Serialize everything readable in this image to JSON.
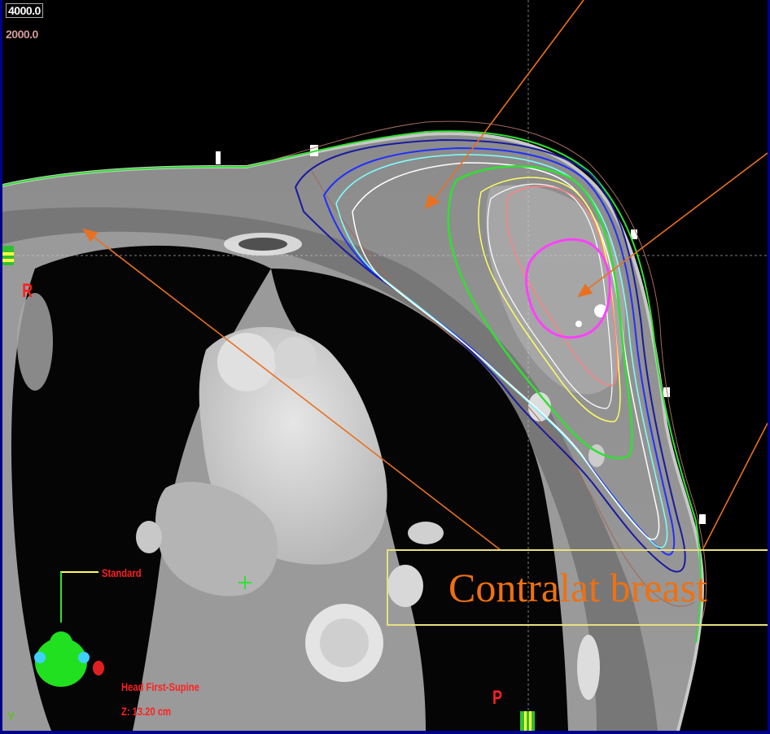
{
  "dose_levels": {
    "top": "4000.0",
    "second": "2000.0"
  },
  "orientation": {
    "right": "R",
    "posterior": "P"
  },
  "orientation_widget": {
    "view": "Standard",
    "axis": "Y"
  },
  "patient_info": {
    "position": "Head First-Supine",
    "z": "Z: 13.20 cm"
  },
  "annotation": {
    "label": "Contralat breast"
  },
  "colors": {
    "frame": "#00008b",
    "arrow": "#e87020",
    "callout_text": "#f07010",
    "callout_border": "#e8e080",
    "overlay_text": "#ff2020",
    "ptv_contour": "#ff40ff",
    "isodose_green": "#30e030",
    "isodose_blue": "#2030ff",
    "isodose_cyan": "#80ffff",
    "isodose_yellow": "#ffff60",
    "isodose_pink": "#ff8080",
    "isodose_white": "#ffffff"
  }
}
